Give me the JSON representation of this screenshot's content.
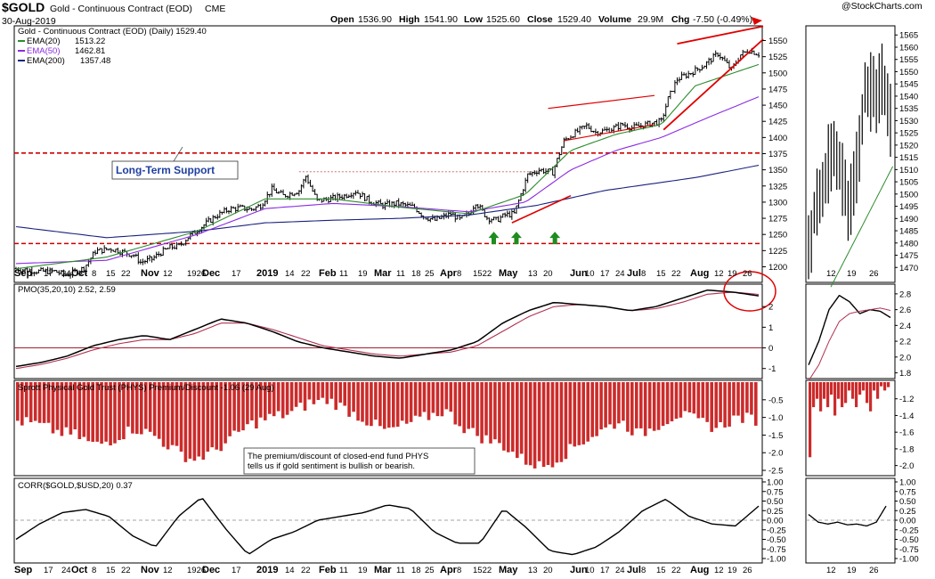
{
  "header": {
    "ticker": "$GOLD",
    "name": "Gold - Continuous Contract (EOD)",
    "exchange": "CME",
    "date": "30-Aug-2019",
    "brand": "@StockCharts.com",
    "open_label": "Open",
    "open": "1536.90",
    "high_label": "High",
    "high": "1541.90",
    "low_label": "Low",
    "low": "1525.60",
    "close_label": "Close",
    "close": "1529.40",
    "volume_label": "Volume",
    "volume": "29.9M",
    "chg_label": "Chg",
    "chg": "-7.50 (-0.49%)"
  },
  "colors": {
    "price": "#000000",
    "ema20": "#2e8b2e",
    "ema50": "#8a2be2",
    "ema200": "#1a237e",
    "support": "#cc0000",
    "trend": "#e00000",
    "pmo_signal": "#b03050",
    "bars": "#cc2b2b",
    "arrows": "#1e8c1e",
    "annotation_blue": "#1f3fa0"
  },
  "chart_data": [
    {
      "type": "candlestick",
      "title": "Gold - Continuous Contract (EOD) (Daily) 1529.40",
      "legend": [
        {
          "name": "EMA(20)",
          "value": "1513.22"
        },
        {
          "name": "EMA(50)",
          "value": "1462.81"
        },
        {
          "name": "EMA(200)",
          "value": "1357.48"
        }
      ],
      "ylim": [
        1180,
        1570
      ],
      "yticks": [
        1200,
        1225,
        1250,
        1275,
        1300,
        1325,
        1350,
        1375,
        1400,
        1425,
        1450,
        1475,
        1500,
        1525,
        1550
      ],
      "support_levels": [
        1376,
        1236
      ],
      "annotations": [
        "Long-Term Support"
      ],
      "x_labels": [
        "Sep",
        "17",
        "24",
        "Oct",
        "8",
        "15",
        "22",
        "Nov",
        "12",
        "1926",
        "Dec",
        "17",
        "2019",
        "14",
        "22",
        "Feb",
        "11",
        "19",
        "Mar",
        "11",
        "18",
        "25",
        "Apr",
        "8",
        "1522",
        "May",
        "13",
        "20",
        "Jun",
        "10",
        "17",
        "24",
        "Jul",
        "8",
        "15",
        "22",
        "Aug",
        "12",
        "19",
        "26"
      ],
      "anchors": [
        [
          0,
          1197
        ],
        [
          10,
          1193
        ],
        [
          17,
          1193
        ],
        [
          22,
          1187
        ],
        [
          26,
          1192
        ],
        [
          30,
          1198
        ],
        [
          35,
          1224
        ],
        [
          42,
          1228
        ],
        [
          52,
          1218
        ],
        [
          55,
          1207
        ],
        [
          60,
          1212
        ],
        [
          64,
          1222
        ],
        [
          68,
          1230
        ],
        [
          72,
          1232
        ],
        [
          76,
          1246
        ],
        [
          82,
          1262
        ],
        [
          88,
          1278
        ],
        [
          94,
          1289
        ],
        [
          99,
          1291
        ],
        [
          104,
          1289
        ],
        [
          108,
          1295
        ],
        [
          113,
          1320
        ],
        [
          118,
          1310
        ],
        [
          120,
          1312
        ],
        [
          125,
          1318
        ],
        [
          128,
          1340
        ],
        [
          133,
          1302
        ],
        [
          140,
          1306
        ],
        [
          145,
          1310
        ],
        [
          150,
          1317
        ],
        [
          156,
          1302
        ],
        [
          162,
          1295
        ],
        [
          168,
          1298
        ],
        [
          176,
          1292
        ],
        [
          180,
          1278
        ],
        [
          185,
          1272
        ],
        [
          192,
          1282
        ],
        [
          196,
          1273
        ],
        [
          200,
          1282
        ],
        [
          203,
          1300
        ],
        [
          208,
          1276
        ],
        [
          212,
          1272
        ],
        [
          216,
          1280
        ],
        [
          220,
          1282
        ],
        [
          226,
          1342
        ],
        [
          231,
          1350
        ],
        [
          237,
          1346
        ],
        [
          242,
          1395
        ],
        [
          246,
          1405
        ],
        [
          252,
          1418
        ],
        [
          256,
          1408
        ],
        [
          262,
          1412
        ],
        [
          268,
          1420
        ],
        [
          272,
          1415
        ],
        [
          278,
          1420
        ],
        [
          285,
          1425
        ],
        [
          288,
          1460
        ],
        [
          292,
          1490
        ],
        [
          298,
          1500
        ],
        [
          304,
          1512
        ],
        [
          310,
          1530
        ],
        [
          316,
          1505
        ],
        [
          320,
          1528
        ],
        [
          324,
          1535
        ],
        [
          328,
          1529
        ]
      ],
      "ema20_anchors": [
        [
          0,
          1197
        ],
        [
          40,
          1215
        ],
        [
          80,
          1255
        ],
        [
          110,
          1305
        ],
        [
          140,
          1305
        ],
        [
          170,
          1292
        ],
        [
          200,
          1282
        ],
        [
          225,
          1312
        ],
        [
          245,
          1380
        ],
        [
          265,
          1405
        ],
        [
          285,
          1420
        ],
        [
          300,
          1480
        ],
        [
          328,
          1513
        ]
      ],
      "ema50_anchors": [
        [
          0,
          1205
        ],
        [
          40,
          1210
        ],
        [
          80,
          1250
        ],
        [
          110,
          1290
        ],
        [
          140,
          1298
        ],
        [
          170,
          1293
        ],
        [
          200,
          1285
        ],
        [
          225,
          1300
        ],
        [
          245,
          1350
        ],
        [
          265,
          1380
        ],
        [
          285,
          1400
        ],
        [
          305,
          1430
        ],
        [
          328,
          1463
        ]
      ],
      "ema200_anchors": [
        [
          0,
          1262
        ],
        [
          40,
          1245
        ],
        [
          80,
          1255
        ],
        [
          110,
          1268
        ],
        [
          140,
          1272
        ],
        [
          170,
          1275
        ],
        [
          200,
          1280
        ],
        [
          230,
          1295
        ],
        [
          260,
          1318
        ],
        [
          300,
          1338
        ],
        [
          328,
          1357
        ]
      ]
    },
    {
      "type": "line",
      "title": "PMO(35,20,10) 2.52, 2.59",
      "series": [
        {
          "name": "PMO(35,20,10)",
          "values": [
            -0.9,
            -0.7,
            -0.4,
            0.1,
            0.4,
            0.6,
            0.4,
            0.9,
            1.4,
            1.2,
            0.8,
            0.3,
            0.0,
            -0.2,
            -0.4,
            -0.5,
            -0.3,
            -0.1,
            0.3,
            1.2,
            1.8,
            2.2,
            2.1,
            2.0,
            1.8,
            2.0,
            2.4,
            2.8,
            2.7,
            2.52
          ]
        },
        {
          "name": "Signal",
          "values": [
            -1.0,
            -0.8,
            -0.5,
            -0.1,
            0.2,
            0.4,
            0.4,
            0.7,
            1.2,
            1.2,
            0.9,
            0.5,
            0.1,
            -0.1,
            -0.3,
            -0.4,
            -0.3,
            -0.2,
            0.1,
            0.8,
            1.5,
            2.0,
            2.1,
            2.0,
            1.8,
            1.9,
            2.2,
            2.6,
            2.7,
            2.59
          ]
        }
      ],
      "ylim": [
        -1.4,
        3.0
      ],
      "yticks": [
        -1,
        0,
        1,
        2
      ]
    },
    {
      "type": "bar",
      "title": "Sprott Physical Gold Trust (PHYS) Premium/Discount -1.06 (29 Aug)",
      "annotation": "The premium/discount of closed-end fund PHYS tells us if gold sentiment is bullish or bearish.",
      "values": [
        -1.1,
        -1.2,
        -1.4,
        -1.5,
        -1.8,
        -1.6,
        -1.3,
        -1.5,
        -1.9,
        -2.2,
        -2.0,
        -1.6,
        -1.2,
        -1.0,
        -0.9,
        -0.6,
        -0.5,
        -0.8,
        -1.1,
        -1.4,
        -1.2,
        -1.0,
        -0.8,
        -1.3,
        -1.6,
        -1.8,
        -2.2,
        -2.4,
        -2.1,
        -1.7,
        -1.4,
        -1.1,
        -1.5,
        -1.2,
        -0.9,
        -1.1,
        -1.3,
        -1.0,
        -1.06
      ],
      "ylim": [
        -2.6,
        0
      ],
      "yticks": [
        -0.5,
        -1.0,
        -1.5,
        -2.0,
        -2.5
      ]
    },
    {
      "type": "line",
      "title": "CORR($GOLD,$USD,20) 0.37",
      "values": [
        -0.5,
        -0.1,
        0.2,
        0.28,
        0.1,
        -0.4,
        -0.7,
        0.1,
        0.6,
        -0.2,
        -0.9,
        -0.5,
        -0.3,
        0.0,
        0.1,
        0.2,
        0.4,
        0.3,
        -0.3,
        -0.6,
        -0.6,
        0.3,
        -0.2,
        -0.8,
        -0.9,
        -0.7,
        -0.3,
        0.25,
        0.55,
        0.1,
        -0.1,
        -0.15,
        0.37
      ],
      "ylim": [
        -1.0,
        1.0
      ],
      "yticks": [
        1.0,
        0.75,
        0.5,
        0.25,
        0.0,
        -0.25,
        -0.5,
        -0.75,
        -1.0
      ]
    }
  ],
  "mini": {
    "price_values": [
      1475,
      1500,
      1505,
      1520,
      1508,
      1495,
      1510,
      1545,
      1540,
      1550,
      1532
    ],
    "price_yticks": [
      1470,
      1475,
      1480,
      1485,
      1490,
      1495,
      1500,
      1505,
      1510,
      1515,
      1520,
      1525,
      1530,
      1535,
      1540,
      1545,
      1550,
      1555,
      1560,
      1565
    ],
    "pmo_yticks": [
      1.8,
      2.0,
      2.2,
      2.4,
      2.6,
      2.8
    ],
    "phys_yticks": [
      -1.2,
      -1.4,
      -1.6,
      -1.8,
      -2.0
    ],
    "corr_yticks": [
      1.0,
      0.75,
      0.5,
      0.25,
      0.0,
      -0.25,
      -0.5,
      -0.75,
      -1.0
    ],
    "x_labels": [
      "12",
      "19",
      "26"
    ]
  }
}
